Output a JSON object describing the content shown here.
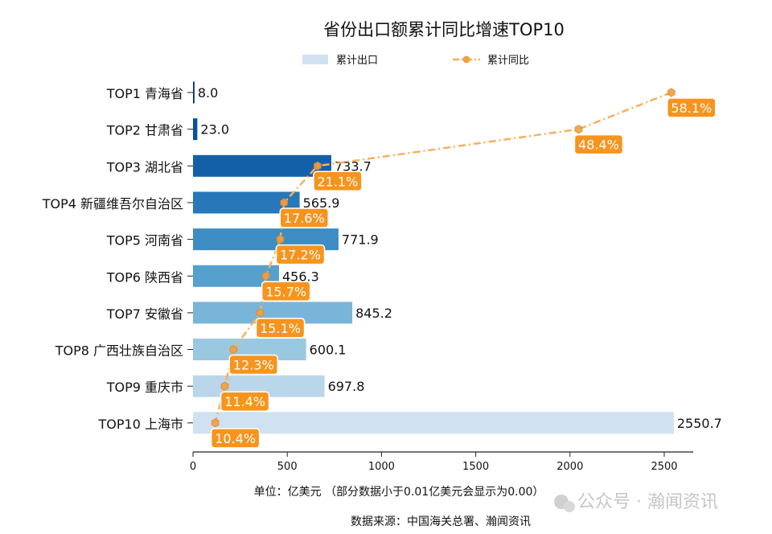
{
  "chart_data": {
    "type": "bar",
    "orientation": "horizontal",
    "title": "省份出口额累计同比增速TOP10",
    "categories": [
      "TOP1 青海省",
      "TOP2 甘肃省",
      "TOP3 湖北省",
      "TOP4 新疆维吾尔自治区",
      "TOP5 河南省",
      "TOP6 陕西省",
      "TOP7 安徽省",
      "TOP8 广西壮族自治区",
      "TOP9 重庆市",
      "TOP10 上海市"
    ],
    "series": [
      {
        "name": "累计出口",
        "type": "bar",
        "values": [
          8.0,
          23.0,
          733.7,
          565.9,
          771.9,
          456.3,
          845.2,
          600.1,
          697.8,
          2550.7
        ],
        "labels": [
          "8.0",
          "23.0",
          "733.7",
          "565.9",
          "771.9",
          "456.3",
          "845.2",
          "600.1",
          "697.8",
          "2550.7"
        ],
        "colors": [
          "#08306b",
          "#08519c",
          "#1460a8",
          "#2877b8",
          "#3d8dc4",
          "#56a0ce",
          "#79b5d9",
          "#9ac8e0",
          "#bad6eb",
          "#d0e1f2"
        ]
      },
      {
        "name": "累计同比",
        "type": "line",
        "values": [
          58.1,
          48.4,
          21.1,
          17.6,
          17.2,
          15.7,
          15.1,
          12.3,
          11.4,
          10.4
        ],
        "labels": [
          "58.1%",
          "48.4%",
          "21.1%",
          "17.6%",
          "17.2%",
          "15.7%",
          "15.1%",
          "12.3%",
          "11.4%",
          "10.4%"
        ],
        "color": "#f8b05c",
        "label_color": "#f7941d",
        "style": "dash-dot",
        "marker": "hexagon"
      }
    ],
    "xlim": [
      0,
      2660
    ],
    "xticks": [
      "0",
      "500",
      "1000",
      "1500",
      "2000",
      "2500"
    ],
    "xlabel": "单位：亿美元  （部分数据小于0.01亿美元会显示为0.00）",
    "source": "数据来源：中国海关总署、瀚闻资讯",
    "legend": "top-center",
    "grid": false
  },
  "watermark": "公众号 · 瀚闻资讯"
}
